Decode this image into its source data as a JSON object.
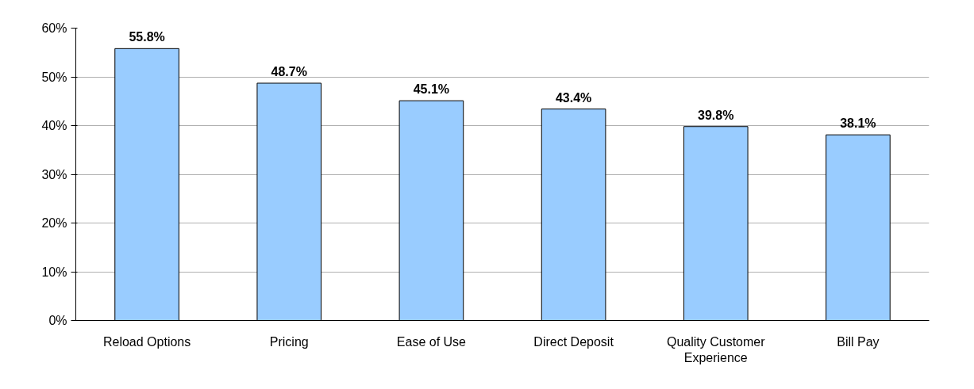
{
  "chart_data": {
    "type": "bar",
    "categories": [
      "Reload Options",
      "Pricing",
      "Ease of Use",
      "Direct Deposit",
      "Quality Customer Experience",
      "Bill Pay"
    ],
    "values": [
      55.8,
      48.7,
      45.1,
      43.4,
      39.8,
      38.1
    ],
    "value_labels": [
      "55.8%",
      "48.7%",
      "45.1%",
      "43.4%",
      "39.8%",
      "38.1%"
    ],
    "color": "#99ccff",
    "ylim": [
      0,
      60
    ],
    "yticks": [
      {
        "value": 0,
        "label": "0%"
      },
      {
        "value": 10,
        "label": "10%"
      },
      {
        "value": 20,
        "label": "20%"
      },
      {
        "value": 30,
        "label": "30%"
      },
      {
        "value": 40,
        "label": "40%"
      },
      {
        "value": 50,
        "label": "50%"
      },
      {
        "value": 60,
        "label": "60%"
      }
    ],
    "grid": "y"
  }
}
